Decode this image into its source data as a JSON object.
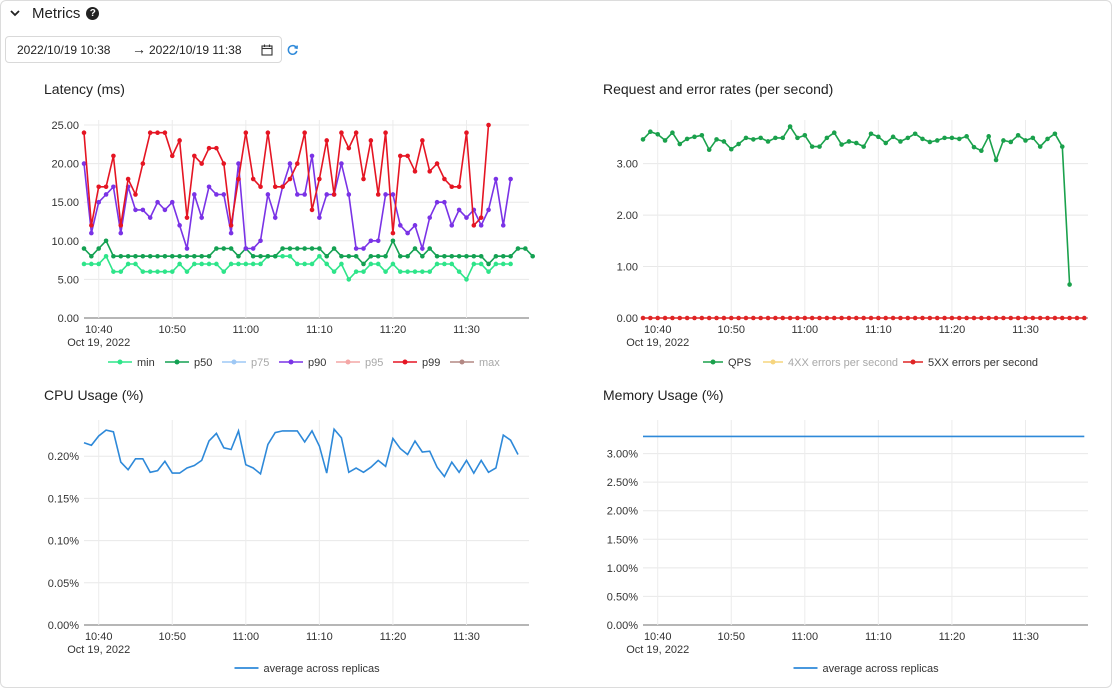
{
  "header": {
    "title": "Metrics",
    "help_glyph": "?"
  },
  "time_range": {
    "start": "2022/10/19 10:38",
    "arrow": "→",
    "end": "2022/10/19 11:38"
  },
  "icons": {
    "collapse": "chevron-down-icon",
    "help": "question-circle-icon",
    "calendar": "calendar-icon",
    "refresh": "refresh-icon"
  },
  "colors": {
    "min": "#2ee58a",
    "p50": "#13a152",
    "p75": "#9ec8f5",
    "p90": "#7a33e6",
    "p95": "#f4a7a6",
    "p99": "#e51523",
    "max": "#b38883",
    "avg": "#2e89d9",
    "qps": "#1aa14c",
    "err4xx": "#f6d57e",
    "err5xx": "#df2525"
  },
  "chart_data": [
    {
      "type": "line",
      "title": "Latency (ms)",
      "x_ticks": [
        "10:40",
        "10:50",
        "11:00",
        "11:10",
        "11:20",
        "11:30"
      ],
      "x_sub": "Oct 19, 2022",
      "y_ticks": [
        "0.00",
        "5.00",
        "10.00",
        "15.00",
        "20.00",
        "25.00"
      ],
      "ylim": [
        0,
        25
      ],
      "x_start": "10:38",
      "x_step_min": 1,
      "series": [
        {
          "name": "min",
          "color": "#2ee58a",
          "enabled": true,
          "values": [
            7,
            7,
            7,
            8,
            6,
            6,
            7,
            7,
            6,
            6,
            6,
            6,
            6,
            7,
            6,
            7,
            7,
            7,
            7,
            6,
            7,
            7,
            7,
            7,
            7,
            8,
            8,
            8,
            8,
            7,
            7,
            7,
            8,
            7,
            6,
            7,
            5,
            6,
            6,
            7,
            7,
            6,
            7,
            6,
            6,
            6,
            6,
            6,
            7,
            7,
            7,
            6,
            5,
            7,
            7,
            6,
            7,
            7,
            7
          ]
        },
        {
          "name": "p50",
          "color": "#13a152",
          "enabled": true,
          "values": [
            9,
            8,
            9,
            10,
            8,
            8,
            8,
            8,
            8,
            8,
            8,
            8,
            8,
            8,
            8,
            8,
            8,
            8,
            9,
            9,
            9,
            8,
            9,
            8,
            8,
            8,
            8,
            9,
            9,
            9,
            9,
            9,
            9,
            8,
            9,
            8,
            8,
            8,
            7,
            8,
            8,
            8,
            10,
            8,
            8,
            9,
            8,
            9,
            8,
            8,
            8,
            8,
            8,
            8,
            8,
            7,
            8,
            8,
            8,
            9,
            9,
            8
          ]
        },
        {
          "name": "p75",
          "color": "#9ec8f5",
          "enabled": false,
          "values": []
        },
        {
          "name": "p90",
          "color": "#7a33e6",
          "enabled": true,
          "values": [
            20,
            11,
            15,
            16,
            17,
            11,
            17,
            14,
            14,
            13,
            15,
            14,
            15,
            12,
            9,
            16,
            13,
            17,
            16,
            16,
            11,
            20,
            9,
            9,
            10,
            16,
            13,
            17,
            20,
            16,
            16,
            21,
            13,
            16,
            16,
            20,
            16,
            9,
            9,
            10,
            10,
            16,
            16,
            12,
            11,
            12,
            9,
            13,
            15,
            15,
            12,
            14,
            13,
            14,
            12,
            14,
            18,
            12,
            18
          ]
        },
        {
          "name": "p95",
          "color": "#f4a7a6",
          "enabled": false,
          "values": []
        },
        {
          "name": "p99",
          "color": "#e51523",
          "enabled": true,
          "values": [
            24,
            12,
            17,
            17,
            21,
            12,
            18,
            16,
            20,
            24,
            24,
            24,
            21,
            23,
            13,
            21,
            20,
            22,
            22,
            20,
            12,
            18,
            24,
            18,
            17,
            24,
            17,
            17,
            18,
            20,
            24,
            14,
            18,
            23,
            16,
            24,
            22,
            24,
            18,
            23,
            16,
            24,
            11,
            21,
            21,
            19,
            23,
            19,
            20,
            18,
            17,
            17,
            24,
            12,
            13,
            25
          ]
        },
        {
          "name": "max",
          "color": "#b38883",
          "enabled": false,
          "values": []
        }
      ]
    },
    {
      "type": "line",
      "title": "Request and error rates (per second)",
      "x_ticks": [
        "10:40",
        "10:50",
        "11:00",
        "11:10",
        "11:20",
        "11:30"
      ],
      "x_sub": "Oct 19, 2022",
      "y_ticks": [
        "0.00",
        "1.00",
        "2.00",
        "3.00"
      ],
      "ylim": [
        0,
        3.75
      ],
      "x_start": "10:38",
      "x_step_min": 1,
      "series": [
        {
          "name": "QPS",
          "color": "#1aa14c",
          "enabled": true,
          "values": [
            3.47,
            3.62,
            3.57,
            3.45,
            3.6,
            3.38,
            3.48,
            3.52,
            3.55,
            3.27,
            3.47,
            3.43,
            3.28,
            3.38,
            3.5,
            3.47,
            3.5,
            3.43,
            3.5,
            3.5,
            3.72,
            3.5,
            3.55,
            3.33,
            3.33,
            3.5,
            3.6,
            3.37,
            3.43,
            3.4,
            3.33,
            3.58,
            3.52,
            3.4,
            3.52,
            3.43,
            3.5,
            3.58,
            3.48,
            3.42,
            3.45,
            3.5,
            3.5,
            3.48,
            3.53,
            3.32,
            3.25,
            3.53,
            3.07,
            3.45,
            3.42,
            3.55,
            3.45,
            3.5,
            3.33,
            3.48,
            3.58,
            3.33,
            0.65
          ]
        },
        {
          "name": "4XX errors per second",
          "color": "#f6d57e",
          "enabled": false,
          "values": []
        },
        {
          "name": "5XX errors per second",
          "color": "#df2525",
          "enabled": true,
          "values": [
            0,
            0,
            0,
            0,
            0,
            0,
            0,
            0,
            0,
            0,
            0,
            0,
            0,
            0,
            0,
            0,
            0,
            0,
            0,
            0,
            0,
            0,
            0,
            0,
            0,
            0,
            0,
            0,
            0,
            0,
            0,
            0,
            0,
            0,
            0,
            0,
            0,
            0,
            0,
            0,
            0,
            0,
            0,
            0,
            0,
            0,
            0,
            0,
            0,
            0,
            0,
            0,
            0,
            0,
            0,
            0,
            0,
            0,
            0,
            0,
            0
          ]
        }
      ]
    },
    {
      "type": "line",
      "title": "CPU Usage (%)",
      "x_ticks": [
        "10:40",
        "10:50",
        "11:00",
        "11:10",
        "11:20",
        "11:30"
      ],
      "x_sub": "Oct 19, 2022",
      "y_ticks": [
        "0.00%",
        "0.05%",
        "0.10%",
        "0.15%",
        "0.20%"
      ],
      "ylim": [
        0,
        0.237
      ],
      "x_start": "10:38",
      "x_step_min": 1,
      "series": [
        {
          "name": "average across replicas",
          "color": "#2e89d9",
          "enabled": true,
          "values": [
            0.216,
            0.213,
            0.224,
            0.231,
            0.229,
            0.193,
            0.184,
            0.197,
            0.197,
            0.181,
            0.183,
            0.194,
            0.18,
            0.18,
            0.186,
            0.189,
            0.195,
            0.218,
            0.227,
            0.21,
            0.208,
            0.23,
            0.19,
            0.186,
            0.179,
            0.214,
            0.228,
            0.23,
            0.23,
            0.23,
            0.217,
            0.23,
            0.212,
            0.18,
            0.232,
            0.222,
            0.181,
            0.186,
            0.181,
            0.187,
            0.195,
            0.188,
            0.221,
            0.209,
            0.202,
            0.218,
            0.205,
            0.206,
            0.187,
            0.176,
            0.193,
            0.181,
            0.195,
            0.18,
            0.195,
            0.181,
            0.186,
            0.225,
            0.219,
            0.202
          ]
        }
      ]
    },
    {
      "type": "line",
      "title": "Memory Usage (%)",
      "x_ticks": [
        "10:40",
        "10:50",
        "11:00",
        "11:10",
        "11:20",
        "11:30"
      ],
      "x_sub": "Oct 19, 2022",
      "y_ticks": [
        "0.00%",
        "0.50%",
        "1.00%",
        "1.50%",
        "2.00%",
        "2.50%",
        "3.00%"
      ],
      "ylim": [
        0,
        3.5
      ],
      "x_start": "10:38",
      "x_step_min": 1,
      "series": [
        {
          "name": "average across replicas",
          "color": "#2e89d9",
          "enabled": true,
          "values": [
            3.3,
            3.3,
            3.3,
            3.3,
            3.3,
            3.3,
            3.3,
            3.3,
            3.3,
            3.3,
            3.3,
            3.3,
            3.3,
            3.3,
            3.3,
            3.3,
            3.3,
            3.3,
            3.3,
            3.3,
            3.3,
            3.3,
            3.3,
            3.3,
            3.3,
            3.3,
            3.3,
            3.3,
            3.3,
            3.3,
            3.3,
            3.3,
            3.3,
            3.3,
            3.3,
            3.3,
            3.3,
            3.3,
            3.3,
            3.3,
            3.3,
            3.3,
            3.3,
            3.3,
            3.3,
            3.3,
            3.3,
            3.3,
            3.3,
            3.3,
            3.3,
            3.3,
            3.3,
            3.3,
            3.3,
            3.3,
            3.3,
            3.3,
            3.3,
            3.3,
            3.3
          ]
        }
      ]
    }
  ]
}
